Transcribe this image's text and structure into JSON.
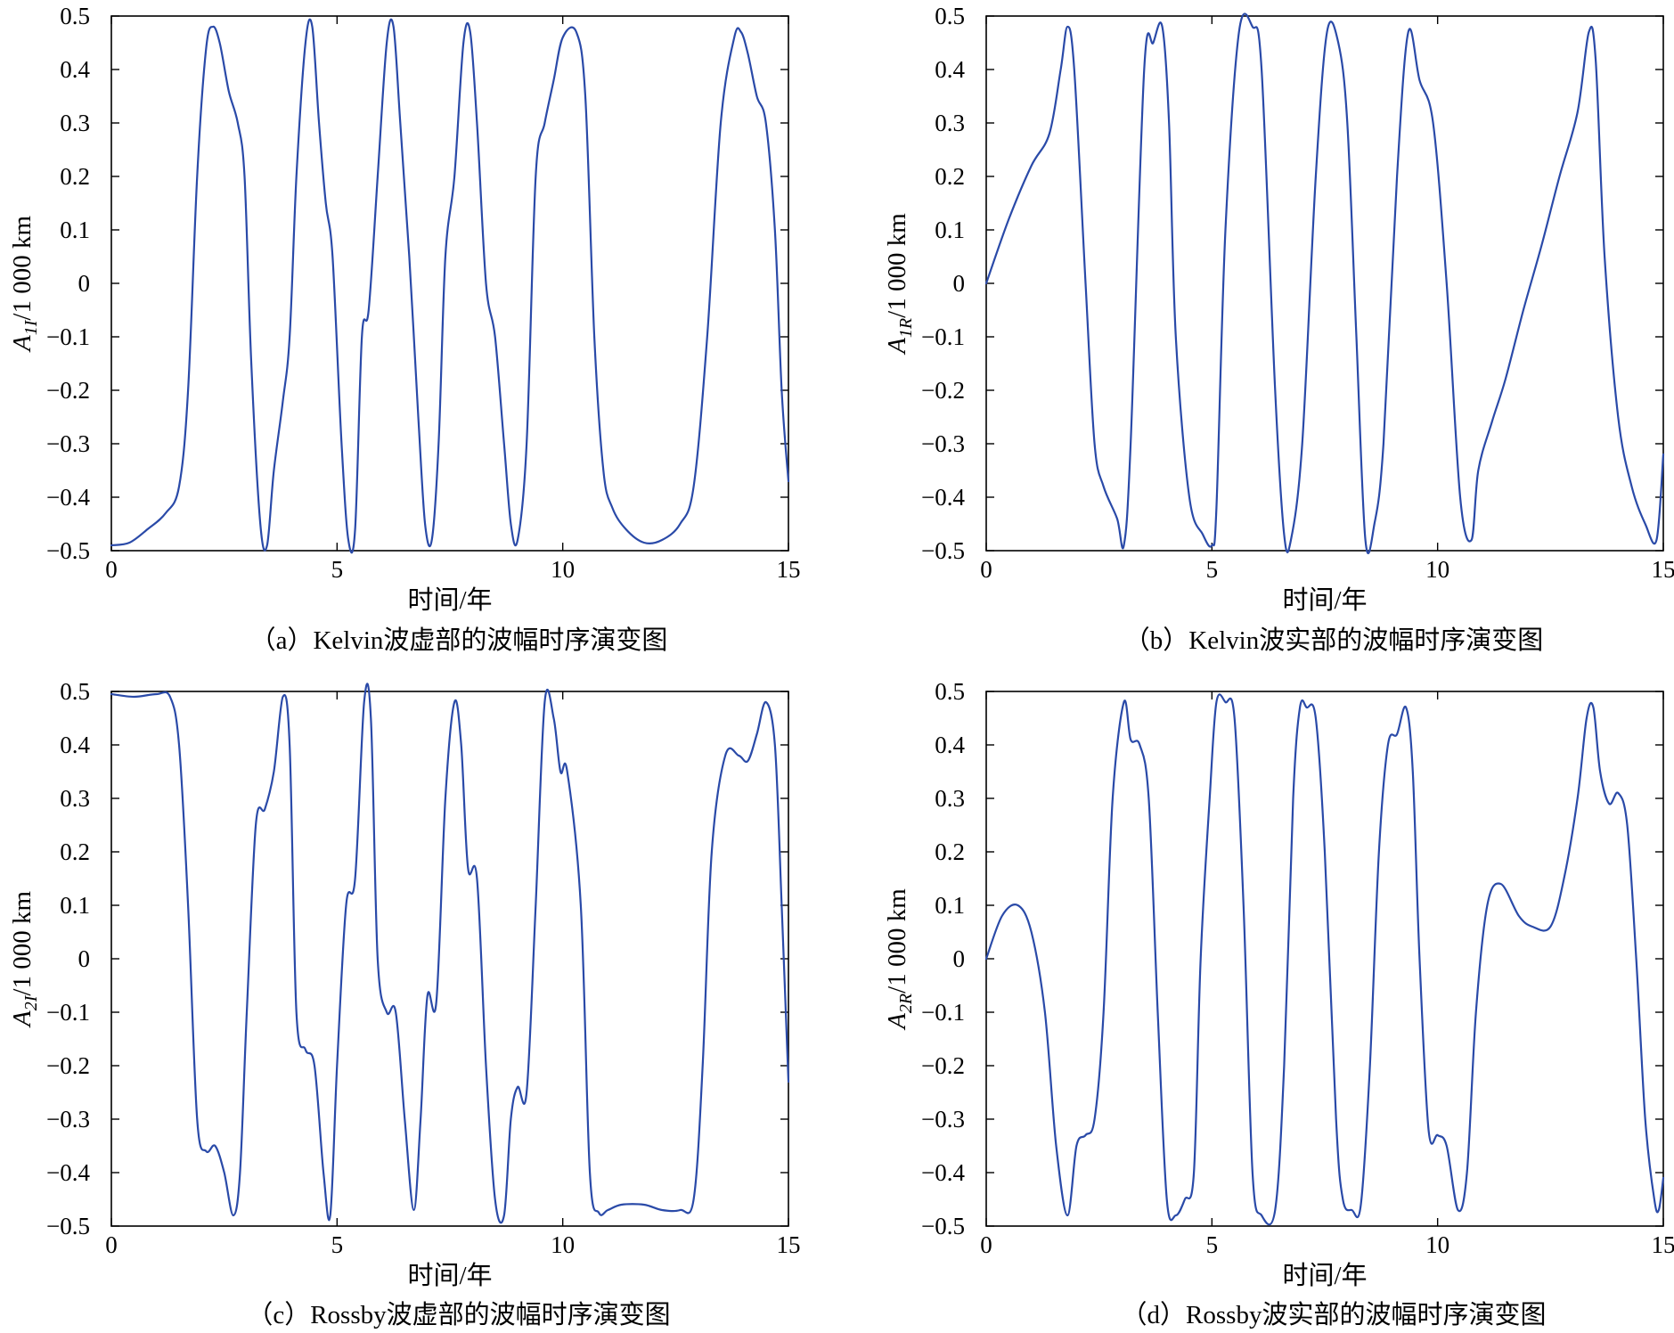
{
  "chart_data": [
    {
      "type": "line",
      "caption": "（a）Kelvin波虚部的波幅时序演变图",
      "xlabel": "时间/年",
      "ylabel": "A1I/1 000 km",
      "ylabel_main": "A",
      "ylabel_sub": "1I",
      "ylabel_tail": "/1 000 km",
      "xlim": [
        0,
        15
      ],
      "ylim": [
        -0.5,
        0.5
      ],
      "xticks": [
        0,
        5,
        10,
        15
      ],
      "yticks": [
        0.5,
        0.4,
        0.3,
        0.2,
        0.1,
        0,
        -0.1,
        -0.2,
        -0.3,
        -0.4,
        -0.5
      ],
      "ytick_labels": [
        "0.5",
        "0.4",
        "0.3",
        "0.2",
        "0.1",
        "0",
        "−0.1",
        "−0.2",
        "−0.3",
        "−0.4",
        "−0.5"
      ],
      "x": [
        0,
        0.4,
        0.8,
        1.2,
        1.5,
        1.7,
        1.9,
        2.1,
        2.25,
        2.4,
        2.6,
        2.8,
        2.95,
        3.1,
        3.3,
        3.45,
        3.6,
        3.8,
        3.95,
        4.1,
        4.3,
        4.45,
        4.6,
        4.75,
        4.9,
        5.1,
        5.25,
        5.4,
        5.55,
        5.7,
        5.9,
        6.1,
        6.25,
        6.4,
        6.6,
        6.8,
        6.95,
        7.1,
        7.25,
        7.4,
        7.6,
        7.8,
        7.95,
        8.1,
        8.3,
        8.5,
        8.7,
        8.85,
        9.0,
        9.2,
        9.4,
        9.6,
        9.8,
        10.0,
        10.3,
        10.5,
        10.7,
        10.9,
        11.1,
        11.4,
        11.8,
        12.2,
        12.6,
        12.9,
        13.2,
        13.5,
        13.8,
        13.95,
        14.1,
        14.3,
        14.5,
        14.7,
        14.85,
        15.0
      ],
      "y": [
        -0.49,
        -0.485,
        -0.46,
        -0.43,
        -0.38,
        -0.2,
        0.2,
        0.44,
        0.48,
        0.45,
        0.36,
        0.3,
        0.2,
        -0.15,
        -0.45,
        -0.49,
        -0.35,
        -0.22,
        -0.1,
        0.2,
        0.45,
        0.48,
        0.3,
        0.15,
        0.05,
        -0.3,
        -0.48,
        -0.46,
        -0.1,
        -0.05,
        0.2,
        0.45,
        0.48,
        0.3,
        0.05,
        -0.25,
        -0.45,
        -0.48,
        -0.3,
        0.05,
        0.2,
        0.45,
        0.47,
        0.3,
        0.0,
        -0.1,
        -0.3,
        -0.45,
        -0.48,
        -0.3,
        0.2,
        0.3,
        0.38,
        0.46,
        0.47,
        0.35,
        -0.1,
        -0.35,
        -0.42,
        -0.46,
        -0.485,
        -0.48,
        -0.45,
        -0.38,
        -0.1,
        0.3,
        0.46,
        0.47,
        0.43,
        0.35,
        0.3,
        0.1,
        -0.2,
        -0.37
      ],
      "color": "#2a4aa8"
    },
    {
      "type": "line",
      "caption": "（b）Kelvin波实部的波幅时序演变图",
      "xlabel": "时间/年",
      "ylabel": "A1R/1 000 km",
      "ylabel_main": "A",
      "ylabel_sub": "1R",
      "ylabel_tail": "/1 000 km",
      "xlim": [
        0,
        15
      ],
      "ylim": [
        -0.5,
        0.5
      ],
      "xticks": [
        0,
        5,
        10,
        15
      ],
      "yticks": [
        0.5,
        0.4,
        0.3,
        0.2,
        0.1,
        0,
        -0.1,
        -0.2,
        -0.3,
        -0.4,
        -0.5
      ],
      "ytick_labels": [
        "0.5",
        "0.4",
        "0.3",
        "0.2",
        "0.1",
        "0",
        "−0.1",
        "−0.2",
        "−0.3",
        "−0.4",
        "−0.5"
      ],
      "x": [
        0,
        0.5,
        1.0,
        1.4,
        1.65,
        1.8,
        1.95,
        2.2,
        2.4,
        2.6,
        2.9,
        3.05,
        3.2,
        3.5,
        3.7,
        3.9,
        4.05,
        4.2,
        4.5,
        4.8,
        5.0,
        5.1,
        5.3,
        5.6,
        5.9,
        6.1,
        6.4,
        6.6,
        6.75,
        7.0,
        7.3,
        7.55,
        7.8,
        8.0,
        8.2,
        8.4,
        8.6,
        8.8,
        9.1,
        9.35,
        9.6,
        9.9,
        10.2,
        10.5,
        10.75,
        10.9,
        11.2,
        11.5,
        11.9,
        12.3,
        12.7,
        13.1,
        13.35,
        13.5,
        13.7,
        14.0,
        14.3,
        14.6,
        14.85,
        15.0
      ],
      "y": [
        0.0,
        0.12,
        0.22,
        0.28,
        0.4,
        0.48,
        0.4,
        0.0,
        -0.3,
        -0.38,
        -0.44,
        -0.49,
        -0.3,
        0.4,
        0.45,
        0.48,
        0.3,
        -0.1,
        -0.4,
        -0.47,
        -0.49,
        -0.42,
        0.1,
        0.47,
        0.48,
        0.4,
        -0.2,
        -0.47,
        -0.48,
        -0.3,
        0.2,
        0.47,
        0.45,
        0.3,
        -0.1,
        -0.48,
        -0.45,
        -0.3,
        0.2,
        0.47,
        0.38,
        0.3,
        0.0,
        -0.4,
        -0.48,
        -0.35,
        -0.26,
        -0.18,
        -0.05,
        0.07,
        0.2,
        0.32,
        0.47,
        0.42,
        0.05,
        -0.25,
        -0.38,
        -0.45,
        -0.48,
        -0.32
      ],
      "color": "#2a4aa8"
    },
    {
      "type": "line",
      "caption": "（c）Rossby波虚部的波幅时序演变图",
      "xlabel": "时间/年",
      "ylabel": "A2I/1 000 km",
      "ylabel_main": "A",
      "ylabel_sub": "2I",
      "ylabel_tail": "/1 000 km",
      "xlim": [
        0,
        15
      ],
      "ylim": [
        -0.5,
        0.5
      ],
      "xticks": [
        0,
        5,
        10,
        15
      ],
      "yticks": [
        0.5,
        0.4,
        0.3,
        0.2,
        0.1,
        0,
        -0.1,
        -0.2,
        -0.3,
        -0.4,
        -0.5
      ],
      "ytick_labels": [
        "0.5",
        "0.4",
        "0.3",
        "0.2",
        "0.1",
        "0",
        "−0.1",
        "−0.2",
        "−0.3",
        "−0.4",
        "−0.5"
      ],
      "x": [
        0,
        0.5,
        1.0,
        1.3,
        1.5,
        1.7,
        1.9,
        2.1,
        2.3,
        2.5,
        2.7,
        2.85,
        3.0,
        3.2,
        3.4,
        3.6,
        3.8,
        3.95,
        4.1,
        4.3,
        4.5,
        4.7,
        4.85,
        5.0,
        5.2,
        5.4,
        5.6,
        5.75,
        5.9,
        6.1,
        6.3,
        6.5,
        6.7,
        6.85,
        7.0,
        7.2,
        7.4,
        7.6,
        7.75,
        7.9,
        8.1,
        8.3,
        8.5,
        8.7,
        8.85,
        9.0,
        9.2,
        9.4,
        9.6,
        9.8,
        9.95,
        10.1,
        10.4,
        10.6,
        10.8,
        11.0,
        11.3,
        11.8,
        12.2,
        12.6,
        12.9,
        13.1,
        13.3,
        13.6,
        13.9,
        14.1,
        14.3,
        14.5,
        14.7,
        14.85,
        15.0
      ],
      "y": [
        0.495,
        0.49,
        0.495,
        0.49,
        0.4,
        0.1,
        -0.3,
        -0.36,
        -0.35,
        -0.4,
        -0.48,
        -0.4,
        -0.1,
        0.25,
        0.28,
        0.35,
        0.49,
        0.4,
        -0.1,
        -0.17,
        -0.2,
        -0.4,
        -0.48,
        -0.2,
        0.1,
        0.15,
        0.48,
        0.45,
        0.0,
        -0.1,
        -0.1,
        -0.3,
        -0.47,
        -0.3,
        -0.07,
        -0.08,
        0.3,
        0.48,
        0.4,
        0.17,
        0.15,
        -0.2,
        -0.45,
        -0.48,
        -0.3,
        -0.24,
        -0.25,
        0.1,
        0.48,
        0.45,
        0.35,
        0.35,
        0.1,
        -0.4,
        -0.475,
        -0.47,
        -0.46,
        -0.46,
        -0.47,
        -0.47,
        -0.45,
        -0.2,
        0.2,
        0.38,
        0.38,
        0.37,
        0.42,
        0.48,
        0.4,
        0.1,
        -0.23
      ],
      "color": "#2a4aa8"
    },
    {
      "type": "line",
      "caption": "（d）Rossby波实部的波幅时序演变图",
      "xlabel": "时间/年",
      "ylabel": "A2R/1 000 km",
      "ylabel_main": "A",
      "ylabel_sub": "2R",
      "ylabel_tail": "/1 000 km",
      "xlim": [
        0,
        15
      ],
      "ylim": [
        -0.5,
        0.5
      ],
      "xticks": [
        0,
        5,
        10,
        15
      ],
      "yticks": [
        0.5,
        0.4,
        0.3,
        0.2,
        0.1,
        0,
        -0.1,
        -0.2,
        -0.3,
        -0.4,
        -0.5
      ],
      "ytick_labels": [
        "0.5",
        "0.4",
        "0.3",
        "0.2",
        "0.1",
        "0",
        "−0.1",
        "−0.2",
        "−0.3",
        "−0.4",
        "−0.5"
      ],
      "x": [
        0,
        0.35,
        0.7,
        1.0,
        1.3,
        1.55,
        1.8,
        2.0,
        2.2,
        2.4,
        2.6,
        2.8,
        3.05,
        3.2,
        3.4,
        3.6,
        3.8,
        4.0,
        4.2,
        4.4,
        4.6,
        4.75,
        4.95,
        5.1,
        5.3,
        5.5,
        5.7,
        5.9,
        6.1,
        6.4,
        6.6,
        6.8,
        6.95,
        7.1,
        7.3,
        7.5,
        7.75,
        7.9,
        8.1,
        8.3,
        8.5,
        8.7,
        8.9,
        9.1,
        9.3,
        9.45,
        9.6,
        9.8,
        10.0,
        10.2,
        10.45,
        10.65,
        10.85,
        11.1,
        11.4,
        11.8,
        12.1,
        12.5,
        12.8,
        13.1,
        13.3,
        13.45,
        13.6,
        13.8,
        14.0,
        14.2,
        14.4,
        14.6,
        14.8,
        14.9,
        15.0
      ],
      "y": [
        0.0,
        0.08,
        0.1,
        0.05,
        -0.1,
        -0.35,
        -0.48,
        -0.35,
        -0.33,
        -0.3,
        -0.1,
        0.3,
        0.48,
        0.41,
        0.4,
        0.3,
        -0.1,
        -0.45,
        -0.48,
        -0.45,
        -0.4,
        0.0,
        0.3,
        0.48,
        0.48,
        0.45,
        0.1,
        -0.4,
        -0.48,
        -0.47,
        -0.2,
        0.3,
        0.47,
        0.47,
        0.45,
        0.2,
        -0.3,
        -0.45,
        -0.47,
        -0.46,
        -0.2,
        0.2,
        0.4,
        0.42,
        0.47,
        0.35,
        0.0,
        -0.32,
        -0.33,
        -0.35,
        -0.47,
        -0.4,
        -0.1,
        0.1,
        0.14,
        0.08,
        0.06,
        0.06,
        0.15,
        0.3,
        0.45,
        0.47,
        0.35,
        0.29,
        0.31,
        0.25,
        0.0,
        -0.3,
        -0.45,
        -0.47,
        -0.41
      ],
      "color": "#2a4aa8"
    }
  ]
}
